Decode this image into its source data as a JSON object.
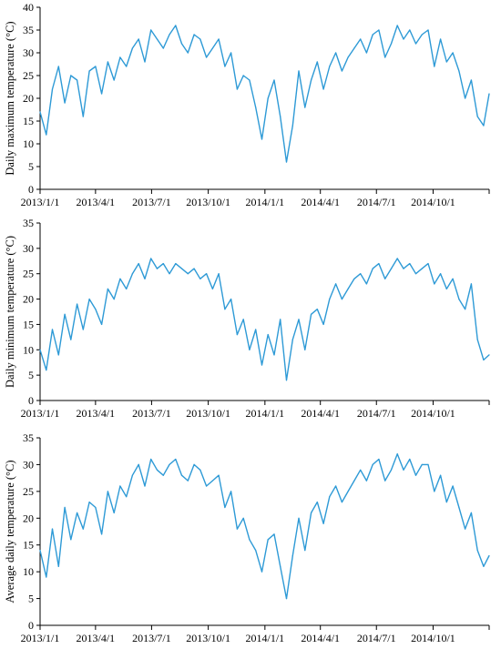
{
  "colors": {
    "series": "#2e9ad6",
    "axis": "#000000"
  },
  "chart_data": [
    {
      "type": "line",
      "ylabel": "Daily maximum temperature (°C)",
      "ylim": [
        0,
        40
      ],
      "yticks": [
        0,
        5,
        10,
        15,
        20,
        25,
        30,
        35,
        40
      ],
      "xlim": [
        "2013-01-01",
        "2014-12-31"
      ],
      "xticks": [
        {
          "date": "2013-01-01",
          "label": "2013/1/1"
        },
        {
          "date": "2013-04-01",
          "label": "2013/4/1"
        },
        {
          "date": "2013-07-01",
          "label": "2013/7/1"
        },
        {
          "date": "2013-10-01",
          "label": "2013/10/1"
        },
        {
          "date": "2014-01-01",
          "label": "2014/1/1"
        },
        {
          "date": "2014-04-01",
          "label": "2014/4/1"
        },
        {
          "date": "2014-07-01",
          "label": "2014/7/1"
        },
        {
          "date": "2014-10-01",
          "label": "2014/10/1"
        },
        {
          "date": "2014-12-31",
          "label": ""
        }
      ],
      "x": [
        "2013-01-01",
        "2013-01-11",
        "2013-01-21",
        "2013-01-31",
        "2013-02-10",
        "2013-02-20",
        "2013-03-02",
        "2013-03-12",
        "2013-03-22",
        "2013-04-01",
        "2013-04-11",
        "2013-04-21",
        "2013-05-01",
        "2013-05-11",
        "2013-05-21",
        "2013-05-31",
        "2013-06-10",
        "2013-06-20",
        "2013-06-30",
        "2013-07-10",
        "2013-07-20",
        "2013-07-30",
        "2013-08-09",
        "2013-08-19",
        "2013-08-29",
        "2013-09-08",
        "2013-09-18",
        "2013-09-28",
        "2013-10-08",
        "2013-10-18",
        "2013-10-28",
        "2013-11-07",
        "2013-11-17",
        "2013-11-27",
        "2013-12-07",
        "2013-12-17",
        "2013-12-27",
        "2014-01-06",
        "2014-01-16",
        "2014-01-26",
        "2014-02-05",
        "2014-02-15",
        "2014-02-25",
        "2014-03-07",
        "2014-03-17",
        "2014-03-27",
        "2014-04-06",
        "2014-04-16",
        "2014-04-26",
        "2014-05-06",
        "2014-05-16",
        "2014-05-26",
        "2014-06-05",
        "2014-06-15",
        "2014-06-25",
        "2014-07-05",
        "2014-07-15",
        "2014-07-25",
        "2014-08-04",
        "2014-08-14",
        "2014-08-24",
        "2014-09-03",
        "2014-09-13",
        "2014-09-23",
        "2014-10-03",
        "2014-10-13",
        "2014-10-23",
        "2014-11-02",
        "2014-11-12",
        "2014-11-22",
        "2014-12-02",
        "2014-12-12",
        "2014-12-22",
        "2014-12-31"
      ],
      "values": [
        17,
        12,
        22,
        27,
        19,
        25,
        24,
        16,
        26,
        27,
        21,
        28,
        24,
        29,
        27,
        31,
        33,
        28,
        35,
        33,
        31,
        34,
        36,
        32,
        30,
        34,
        33,
        29,
        31,
        33,
        27,
        30,
        22,
        25,
        24,
        18,
        11,
        20,
        24,
        16,
        6,
        14,
        26,
        18,
        24,
        28,
        22,
        27,
        30,
        26,
        29,
        31,
        33,
        30,
        34,
        35,
        29,
        32,
        36,
        33,
        35,
        32,
        34,
        35,
        27,
        33,
        28,
        30,
        26,
        20,
        24,
        16,
        14,
        21
      ]
    },
    {
      "type": "line",
      "ylabel": "Daily minimum temperature (°C)",
      "ylim": [
        0,
        35
      ],
      "yticks": [
        0,
        5,
        10,
        15,
        20,
        25,
        30,
        35
      ],
      "xlim": [
        "2013-01-01",
        "2014-12-31"
      ],
      "xticks": [
        {
          "date": "2013-01-01",
          "label": "2013/1/1"
        },
        {
          "date": "2013-04-01",
          "label": "2013/4/1"
        },
        {
          "date": "2013-07-01",
          "label": "2013/7/1"
        },
        {
          "date": "2013-10-01",
          "label": "2013/10/1"
        },
        {
          "date": "2014-01-01",
          "label": "2014/1/1"
        },
        {
          "date": "2014-04-01",
          "label": "2014/4/1"
        },
        {
          "date": "2014-07-01",
          "label": "2014/7/1"
        },
        {
          "date": "2014-10-01",
          "label": "2014/10/1"
        },
        {
          "date": "2014-12-31",
          "label": ""
        }
      ],
      "x": [
        "2013-01-01",
        "2013-01-11",
        "2013-01-21",
        "2013-01-31",
        "2013-02-10",
        "2013-02-20",
        "2013-03-02",
        "2013-03-12",
        "2013-03-22",
        "2013-04-01",
        "2013-04-11",
        "2013-04-21",
        "2013-05-01",
        "2013-05-11",
        "2013-05-21",
        "2013-05-31",
        "2013-06-10",
        "2013-06-20",
        "2013-06-30",
        "2013-07-10",
        "2013-07-20",
        "2013-07-30",
        "2013-08-09",
        "2013-08-19",
        "2013-08-29",
        "2013-09-08",
        "2013-09-18",
        "2013-09-28",
        "2013-10-08",
        "2013-10-18",
        "2013-10-28",
        "2013-11-07",
        "2013-11-17",
        "2013-11-27",
        "2013-12-07",
        "2013-12-17",
        "2013-12-27",
        "2014-01-06",
        "2014-01-16",
        "2014-01-26",
        "2014-02-05",
        "2014-02-15",
        "2014-02-25",
        "2014-03-07",
        "2014-03-17",
        "2014-03-27",
        "2014-04-06",
        "2014-04-16",
        "2014-04-26",
        "2014-05-06",
        "2014-05-16",
        "2014-05-26",
        "2014-06-05",
        "2014-06-15",
        "2014-06-25",
        "2014-07-05",
        "2014-07-15",
        "2014-07-25",
        "2014-08-04",
        "2014-08-14",
        "2014-08-24",
        "2014-09-03",
        "2014-09-13",
        "2014-09-23",
        "2014-10-03",
        "2014-10-13",
        "2014-10-23",
        "2014-11-02",
        "2014-11-12",
        "2014-11-22",
        "2014-12-02",
        "2014-12-12",
        "2014-12-22",
        "2014-12-31"
      ],
      "values": [
        10,
        6,
        14,
        9,
        17,
        12,
        19,
        14,
        20,
        18,
        15,
        22,
        20,
        24,
        22,
        25,
        27,
        24,
        28,
        26,
        27,
        25,
        27,
        26,
        25,
        26,
        24,
        25,
        22,
        25,
        18,
        20,
        13,
        16,
        10,
        14,
        7,
        13,
        9,
        16,
        4,
        12,
        16,
        10,
        17,
        18,
        15,
        20,
        23,
        20,
        22,
        24,
        25,
        23,
        26,
        27,
        24,
        26,
        28,
        26,
        27,
        25,
        26,
        27,
        23,
        25,
        22,
        24,
        20,
        18,
        23,
        12,
        8,
        9
      ]
    },
    {
      "type": "line",
      "ylabel": "Average daily temperature (°C)",
      "ylim": [
        0,
        35
      ],
      "yticks": [
        0,
        5,
        10,
        15,
        20,
        25,
        30,
        35
      ],
      "xlim": [
        "2013-01-01",
        "2014-12-31"
      ],
      "xticks": [
        {
          "date": "2013-01-01",
          "label": "2013/1/1"
        },
        {
          "date": "2013-04-01",
          "label": "2013/4/1"
        },
        {
          "date": "2013-07-01",
          "label": "2013/7/1"
        },
        {
          "date": "2013-10-01",
          "label": "2013/10/1"
        },
        {
          "date": "2014-01-01",
          "label": "2014/1/1"
        },
        {
          "date": "2014-04-01",
          "label": "2014/4/1"
        },
        {
          "date": "2014-07-01",
          "label": "2014/7/1"
        },
        {
          "date": "2014-10-01",
          "label": "2014/10/1"
        },
        {
          "date": "2014-12-31",
          "label": ""
        }
      ],
      "x": [
        "2013-01-01",
        "2013-01-11",
        "2013-01-21",
        "2013-01-31",
        "2013-02-10",
        "2013-02-20",
        "2013-03-02",
        "2013-03-12",
        "2013-03-22",
        "2013-04-01",
        "2013-04-11",
        "2013-04-21",
        "2013-05-01",
        "2013-05-11",
        "2013-05-21",
        "2013-05-31",
        "2013-06-10",
        "2013-06-20",
        "2013-06-30",
        "2013-07-10",
        "2013-07-20",
        "2013-07-30",
        "2013-08-09",
        "2013-08-19",
        "2013-08-29",
        "2013-09-08",
        "2013-09-18",
        "2013-09-28",
        "2013-10-08",
        "2013-10-18",
        "2013-10-28",
        "2013-11-07",
        "2013-11-17",
        "2013-11-27",
        "2013-12-07",
        "2013-12-17",
        "2013-12-27",
        "2014-01-06",
        "2014-01-16",
        "2014-01-26",
        "2014-02-05",
        "2014-02-15",
        "2014-02-25",
        "2014-03-07",
        "2014-03-17",
        "2014-03-27",
        "2014-04-06",
        "2014-04-16",
        "2014-04-26",
        "2014-05-06",
        "2014-05-16",
        "2014-05-26",
        "2014-06-05",
        "2014-06-15",
        "2014-06-25",
        "2014-07-05",
        "2014-07-15",
        "2014-07-25",
        "2014-08-04",
        "2014-08-14",
        "2014-08-24",
        "2014-09-03",
        "2014-09-13",
        "2014-09-23",
        "2014-10-03",
        "2014-10-13",
        "2014-10-23",
        "2014-11-02",
        "2014-11-12",
        "2014-11-22",
        "2014-12-02",
        "2014-12-12",
        "2014-12-22",
        "2014-12-31"
      ],
      "values": [
        14,
        9,
        18,
        11,
        22,
        16,
        21,
        18,
        23,
        22,
        17,
        25,
        21,
        26,
        24,
        28,
        30,
        26,
        31,
        29,
        28,
        30,
        31,
        28,
        27,
        30,
        29,
        26,
        27,
        28,
        22,
        25,
        18,
        20,
        16,
        14,
        10,
        16,
        17,
        11,
        5,
        13,
        20,
        14,
        21,
        23,
        19,
        24,
        26,
        23,
        25,
        27,
        29,
        27,
        30,
        31,
        27,
        29,
        32,
        29,
        31,
        28,
        30,
        30,
        25,
        28,
        23,
        26,
        22,
        18,
        21,
        14,
        11,
        13
      ]
    }
  ]
}
